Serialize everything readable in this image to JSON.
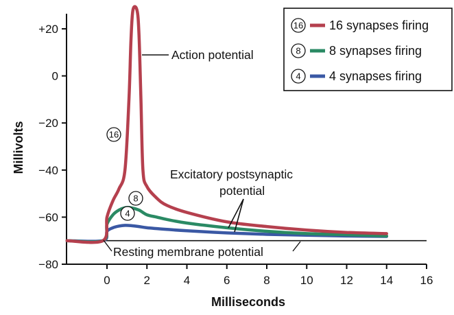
{
  "chart_data": {
    "type": "line",
    "xlabel": "Milliseconds",
    "ylabel": "Millivolts",
    "xlim": [
      -2,
      16
    ],
    "ylim": [
      -80,
      25
    ],
    "x_ticks": [
      0,
      2,
      4,
      6,
      8,
      10,
      12,
      14,
      16
    ],
    "x_tick_labels": [
      "0",
      "2",
      "4",
      "6",
      "8",
      "10",
      "12",
      "14",
      "16"
    ],
    "y_ticks": [
      20,
      0,
      -20,
      -40,
      -60,
      -80
    ],
    "y_tick_labels": [
      "+20",
      "0",
      "−20",
      "−40",
      "−60",
      "−80"
    ],
    "resting_potential": -70,
    "series": [
      {
        "name": "16 synapses firing",
        "marker": "16",
        "color": "#b5404e",
        "x": [
          -2,
          -0.2,
          0,
          0.3,
          0.6,
          0.9,
          1.1,
          1.2,
          1.3,
          1.5,
          1.6,
          1.7,
          1.8,
          2.0,
          2.5,
          3,
          4,
          6,
          8,
          10,
          12,
          14
        ],
        "y": [
          -70,
          -70,
          -60,
          -53,
          -48,
          -40,
          -10,
          15,
          28,
          28,
          18,
          -10,
          -40,
          -47,
          -52,
          -55,
          -58,
          -62,
          -64,
          -65.5,
          -66.5,
          -67
        ]
      },
      {
        "name": "8 synapses firing",
        "marker": "8",
        "color": "#2a8a64",
        "x": [
          -2,
          -0.2,
          0,
          0.3,
          0.6,
          0.9,
          1.2,
          1.6,
          2.0,
          2.5,
          3,
          4,
          6,
          8,
          10,
          12,
          14
        ],
        "y": [
          -70,
          -70,
          -63,
          -59,
          -57,
          -56,
          -56,
          -57,
          -59,
          -60,
          -61,
          -62.5,
          -64.5,
          -66,
          -67,
          -67.5,
          -68
        ]
      },
      {
        "name": "4 synapses firing",
        "marker": "4",
        "color": "#3a58a4",
        "x": [
          -2,
          -0.2,
          0,
          0.3,
          0.6,
          0.9,
          1.2,
          1.6,
          2.0,
          3,
          4,
          6,
          8,
          10,
          12,
          14
        ],
        "y": [
          -70,
          -70,
          -66,
          -64.5,
          -63.8,
          -63.5,
          -63.6,
          -64,
          -64.5,
          -65.2,
          -65.8,
          -66.7,
          -67.3,
          -67.7,
          -68,
          -68.2
        ]
      }
    ],
    "annotations": {
      "action_potential": "Action potential",
      "epsp_line1": "Excitatory postsynaptic",
      "epsp_line2": "potential",
      "resting": "Resting membrane potential"
    },
    "legend_position": "top-right",
    "grid": false
  }
}
